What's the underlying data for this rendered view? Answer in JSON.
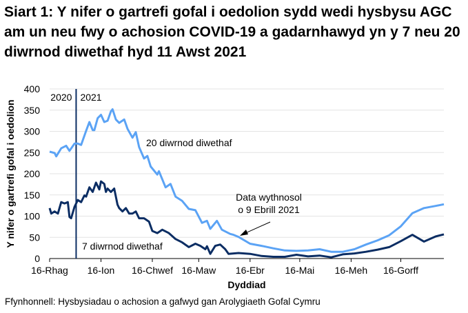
{
  "chart_data": {
    "type": "line",
    "title": "Siart 1: Y nifer o gartrefi gofal i oedolion sydd wedi hysbysu AGC am un neu fwy o achosion COVID-19 a gadarnhawyd yn y 7 neu 20 diwrnod diwethaf hyd 11 Awst 2021",
    "xlabel": "Dyddiad",
    "ylabel": "Y nifer o gartrefi gofal i oedolion",
    "ylim": [
      0,
      400
    ],
    "yticks": [
      "0",
      "50",
      "100",
      "150",
      "200",
      "250",
      "300",
      "350",
      "400"
    ],
    "xlim": [
      "2020-12-16",
      "2021-08-11"
    ],
    "xticks": [
      {
        "date": "2020-12-16",
        "label": "16-Rhag"
      },
      {
        "date": "2021-01-16",
        "label": "16-Ion"
      },
      {
        "date": "2021-02-16",
        "label": "16-Chwef"
      },
      {
        "date": "2021-03-16",
        "label": "16-Maw"
      },
      {
        "date": "2021-04-16",
        "label": "16-Ebr"
      },
      {
        "date": "2021-05-16",
        "label": "16-Mai"
      },
      {
        "date": "2021-06-16",
        "label": "16-Meh"
      },
      {
        "date": "2021-07-16",
        "label": "16-Gorff"
      }
    ],
    "grid": true,
    "year_divider": {
      "date": "2021-01-01",
      "left_label": "2020",
      "right_label": "2021"
    },
    "annotation": {
      "text_line1": "Data wythnosol",
      "text_line2": "o 9 Ebrill 2021",
      "date": "2021-04-09",
      "value": 52
    },
    "series": [
      {
        "name": "20 diwrnod diwethaf",
        "color": "#5ba3f5",
        "x": [
          "2020-12-16",
          "2020-12-19",
          "2020-12-20",
          "2020-12-23",
          "2020-12-26",
          "2020-12-28",
          "2020-12-31",
          "2021-01-02",
          "2021-01-04",
          "2021-01-07",
          "2021-01-09",
          "2021-01-11",
          "2021-01-12",
          "2021-01-14",
          "2021-01-16",
          "2021-01-18",
          "2021-01-20",
          "2021-01-22",
          "2021-01-23",
          "2021-01-25",
          "2021-01-27",
          "2021-01-30",
          "2021-02-01",
          "2021-02-04",
          "2021-02-06",
          "2021-02-08",
          "2021-02-11",
          "2021-02-13",
          "2021-02-15",
          "2021-02-19",
          "2021-02-20",
          "2021-02-24",
          "2021-02-27",
          "2021-03-02",
          "2021-03-06",
          "2021-03-10",
          "2021-03-14",
          "2021-03-18",
          "2021-03-21",
          "2021-03-23",
          "2021-03-27",
          "2021-03-30",
          "2021-04-04",
          "2021-04-06",
          "2021-04-09",
          "2021-04-16",
          "2021-04-23",
          "2021-04-30",
          "2021-05-07",
          "2021-05-14",
          "2021-05-21",
          "2021-05-28",
          "2021-06-04",
          "2021-06-11",
          "2021-06-18",
          "2021-06-25",
          "2021-07-02",
          "2021-07-09",
          "2021-07-16",
          "2021-07-23",
          "2021-07-30",
          "2021-08-06",
          "2021-08-11"
        ],
        "values": [
          252,
          249,
          241,
          260,
          266,
          254,
          271,
          271,
          268,
          301,
          322,
          303,
          303,
          331,
          339,
          322,
          325,
          347,
          352,
          328,
          320,
          328,
          306,
          285,
          298,
          263,
          236,
          242,
          217,
          198,
          206,
          168,
          176,
          146,
          136,
          117,
          114,
          84,
          89,
          70,
          89,
          68,
          58,
          56,
          51,
          35,
          30,
          24,
          19,
          18,
          19,
          22,
          16,
          16,
          22,
          33,
          43,
          55,
          76,
          107,
          119,
          124,
          128
        ]
      },
      {
        "name": "7 diwrnod diwethaf",
        "color": "#0b2d63",
        "x": [
          "2020-12-16",
          "2020-12-17",
          "2020-12-19",
          "2020-12-21",
          "2020-12-23",
          "2020-12-25",
          "2020-12-27",
          "2020-12-28",
          "2020-12-29",
          "2020-12-31",
          "2021-01-02",
          "2021-01-04",
          "2021-01-06",
          "2021-01-07",
          "2021-01-09",
          "2021-01-11",
          "2021-01-13",
          "2021-01-15",
          "2021-01-16",
          "2021-01-18",
          "2021-01-19",
          "2021-01-20",
          "2021-01-22",
          "2021-01-24",
          "2021-01-26",
          "2021-01-27",
          "2021-01-29",
          "2021-01-31",
          "2021-02-02",
          "2021-02-04",
          "2021-02-06",
          "2021-02-08",
          "2021-02-11",
          "2021-02-14",
          "2021-02-16",
          "2021-02-19",
          "2021-02-22",
          "2021-02-26",
          "2021-03-02",
          "2021-03-06",
          "2021-03-10",
          "2021-03-14",
          "2021-03-17",
          "2021-03-20",
          "2021-03-21",
          "2021-03-23",
          "2021-03-26",
          "2021-03-29",
          "2021-04-01",
          "2021-04-03",
          "2021-04-06",
          "2021-04-09",
          "2021-04-16",
          "2021-04-23",
          "2021-04-30",
          "2021-05-07",
          "2021-05-14",
          "2021-05-21",
          "2021-05-28",
          "2021-06-04",
          "2021-06-11",
          "2021-06-18",
          "2021-06-25",
          "2021-07-02",
          "2021-07-09",
          "2021-07-16",
          "2021-07-23",
          "2021-07-30",
          "2021-08-06",
          "2021-08-11"
        ],
        "values": [
          119,
          106,
          111,
          106,
          133,
          130,
          133,
          98,
          95,
          122,
          138,
          133,
          149,
          146,
          168,
          157,
          179,
          163,
          182,
          176,
          157,
          165,
          157,
          165,
          127,
          119,
          111,
          119,
          106,
          106,
          111,
          95,
          95,
          87,
          65,
          60,
          68,
          60,
          46,
          38,
          27,
          35,
          30,
          22,
          29,
          11,
          30,
          33,
          22,
          11,
          12,
          13,
          11,
          6,
          4,
          4,
          9,
          5,
          7,
          3,
          10,
          12,
          16,
          21,
          27,
          41,
          56,
          40,
          52,
          57
        ]
      }
    ]
  },
  "source": "Ffynhonnell: Hysbysiadau o achosion a gafwyd gan Arolygiaeth Gofal Cymru"
}
